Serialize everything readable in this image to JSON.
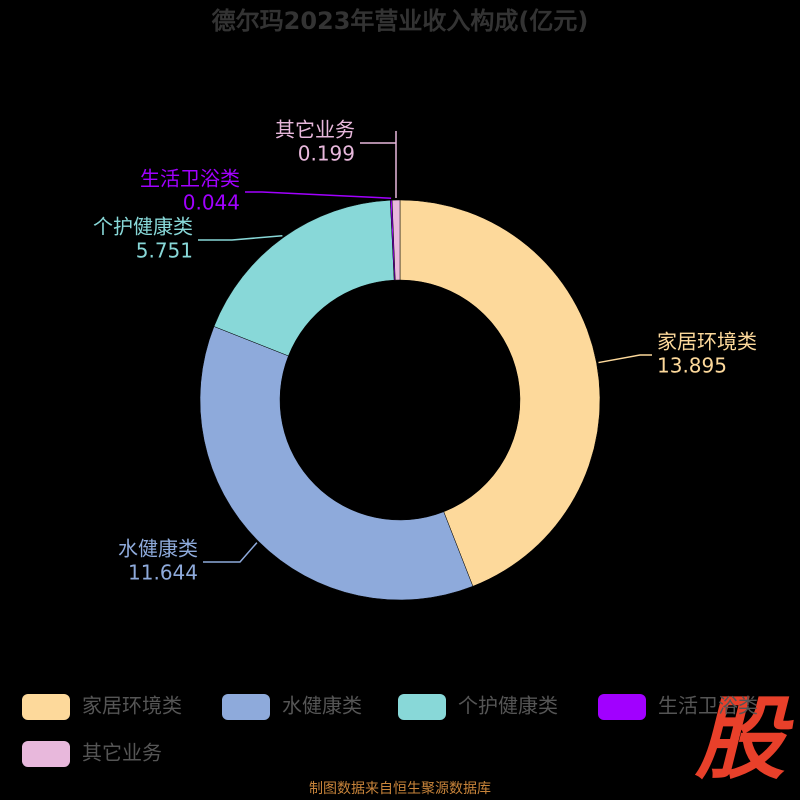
{
  "chart_data": {
    "type": "donut",
    "title": "德尔玛2023年营业收入构成(亿元)",
    "categories": [
      "家居环境类",
      "水健康类",
      "个护健康类",
      "生活卫浴类",
      "其它业务"
    ],
    "values": [
      13.895,
      11.644,
      5.751,
      0.044,
      0.199
    ],
    "colors": [
      "#fdd99b",
      "#8eaadb",
      "#88d8d8",
      "#a100ff",
      "#e8b8dc"
    ],
    "source": "制图数据来自恒生聚源数据库",
    "watermark": "股"
  }
}
